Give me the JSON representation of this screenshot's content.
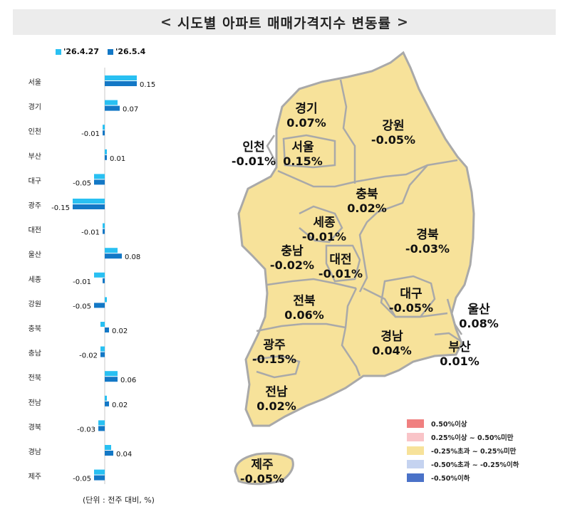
{
  "title": "시도별 아파트 매매가격지수 변동률",
  "title_arrows": {
    "left": "<",
    "right": ">"
  },
  "colors": {
    "series_prev": "#29c0f2",
    "series_curr": "#1378c6",
    "map_fill": "#f7e29a",
    "map_stroke": "#a9a9a9",
    "title_bg": "#ececec"
  },
  "unit_note": "(단위 : 전주 대비, %)",
  "chart_data": {
    "type": "bar",
    "orientation": "horizontal",
    "series": [
      {
        "name": "'26.4.27",
        "values": [
          0.15,
          0.06,
          -0.01,
          0.01,
          -0.05,
          -0.15,
          -0.01,
          0.06,
          -0.05,
          0.01,
          -0.02,
          -0.02,
          0.06,
          0.01,
          -0.03,
          0.03,
          -0.05
        ]
      },
      {
        "name": "'26.5.4",
        "values": [
          0.15,
          0.07,
          -0.01,
          0.01,
          -0.05,
          -0.15,
          -0.01,
          0.08,
          -0.01,
          -0.05,
          0.02,
          -0.02,
          0.06,
          0.02,
          -0.03,
          0.04,
          -0.05
        ]
      }
    ],
    "categories": [
      "서울",
      "경기",
      "인천",
      "부산",
      "대구",
      "광주",
      "대전",
      "울산",
      "세종",
      "강원",
      "충북",
      "충남",
      "전북",
      "전남",
      "경북",
      "경남",
      "제주"
    ],
    "value_labels": [
      "0.15",
      "0.07",
      "-0.01",
      "0.01",
      "-0.05",
      "-0.15",
      "-0.01",
      "0.08",
      "-0.01",
      "-0.05",
      "0.02",
      "-0.02",
      "0.06",
      "0.02",
      "-0.03",
      "0.04",
      "-0.05"
    ],
    "legend_position": "top-left"
  },
  "map": {
    "regions": [
      {
        "name": "경기",
        "value": "0.07%"
      },
      {
        "name": "강원",
        "value": "-0.05%"
      },
      {
        "name": "인천",
        "value": "-0.01%"
      },
      {
        "name": "서울",
        "value": "0.15%"
      },
      {
        "name": "충북",
        "value": "0.02%"
      },
      {
        "name": "세종",
        "value": "-0.01%"
      },
      {
        "name": "경북",
        "value": "-0.03%"
      },
      {
        "name": "충남",
        "value": "-0.02%"
      },
      {
        "name": "대전",
        "value": "-0.01%"
      },
      {
        "name": "대구",
        "value": "-0.05%"
      },
      {
        "name": "울산",
        "value": "0.08%"
      },
      {
        "name": "전북",
        "value": "0.06%"
      },
      {
        "name": "경남",
        "value": "0.04%"
      },
      {
        "name": "부산",
        "value": "0.01%"
      },
      {
        "name": "광주",
        "value": "-0.15%"
      },
      {
        "name": "전남",
        "value": "0.02%"
      },
      {
        "name": "제주",
        "value": "-0.05%"
      }
    ],
    "legend": [
      {
        "label": "0.50%이상",
        "color": "#f08080"
      },
      {
        "label": "0.25%이상 ~ 0.50%미만",
        "color": "#f9c4c8"
      },
      {
        "label": "-0.25%초과 ~ 0.25%미만",
        "color": "#f7e29a"
      },
      {
        "label": "-0.50%초과 ~ -0.25%이하",
        "color": "#c5d3f0"
      },
      {
        "label": "-0.50%이하",
        "color": "#4a72c8"
      }
    ]
  }
}
